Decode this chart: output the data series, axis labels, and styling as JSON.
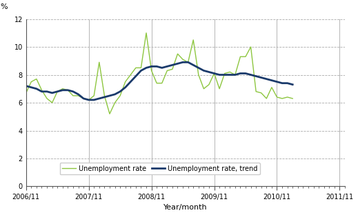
{
  "ylabel_text": "%",
  "xlabel": "Year/month",
  "ylim": [
    0,
    12
  ],
  "yticks": [
    0,
    2,
    4,
    6,
    8,
    10,
    12
  ],
  "xtick_labels": [
    "2006/11",
    "2007/11",
    "2008/11",
    "2009/11",
    "2010/11",
    "2011/11"
  ],
  "unemployment_rate": [
    6.7,
    7.5,
    7.7,
    6.9,
    6.3,
    6.0,
    6.8,
    7.0,
    6.9,
    6.5,
    6.5,
    6.3,
    6.2,
    6.5,
    8.9,
    6.5,
    5.2,
    6.0,
    6.5,
    7.5,
    8.0,
    8.5,
    8.5,
    11.0,
    8.3,
    7.4,
    7.4,
    8.3,
    8.4,
    9.5,
    9.1,
    8.9,
    10.5,
    8.0,
    7.0,
    7.3,
    8.1,
    7.0,
    8.1,
    8.2,
    8.0,
    9.3,
    9.3,
    10.0,
    6.8,
    6.7,
    6.3,
    7.1,
    6.4,
    6.3,
    6.4,
    6.3
  ],
  "unemployment_trend": [
    7.2,
    7.1,
    7.0,
    6.8,
    6.8,
    6.7,
    6.8,
    6.9,
    6.9,
    6.8,
    6.6,
    6.3,
    6.2,
    6.2,
    6.3,
    6.4,
    6.5,
    6.6,
    6.8,
    7.1,
    7.5,
    7.9,
    8.3,
    8.5,
    8.6,
    8.6,
    8.5,
    8.6,
    8.7,
    8.8,
    8.9,
    8.9,
    8.7,
    8.5,
    8.3,
    8.2,
    8.1,
    8.0,
    8.0,
    8.0,
    8.0,
    8.1,
    8.1,
    8.0,
    7.9,
    7.8,
    7.7,
    7.6,
    7.5,
    7.4,
    7.4,
    7.3
  ],
  "rate_color": "#8dc63f",
  "trend_color": "#1a3a6b",
  "background_color": "#ffffff",
  "legend_rate_label": "Unemployment rate",
  "legend_trend_label": "Unemployment rate, trend",
  "grid_color": "#aaaaaa",
  "n_points": 52,
  "n_months_total": 61
}
